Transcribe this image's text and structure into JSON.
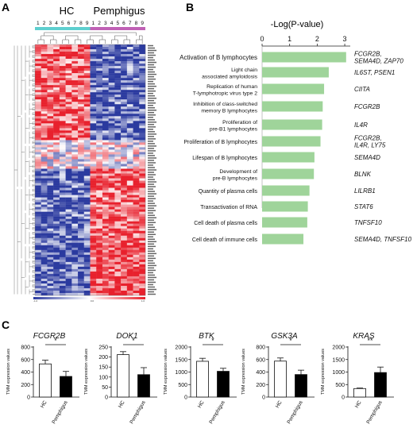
{
  "panels": {
    "A": "A",
    "B": "B",
    "C": "C"
  },
  "chart_data": [
    {
      "type": "heatmap",
      "panel": "A",
      "groups": [
        "HC",
        "Pemphigus"
      ],
      "column_numbers": [
        "1",
        "2",
        "3",
        "4",
        "5",
        "6",
        "7",
        "8",
        "9",
        "1",
        "2",
        "3",
        "4",
        "5",
        "6",
        "7",
        "8",
        "9"
      ],
      "group_colors": {
        "HC": "#5ecfcf",
        "Pemphigus": "#c061b5"
      },
      "color_scale": {
        "low": "#2b3a9f",
        "mid": "#ffffff",
        "high": "#e8212d"
      },
      "scale_labels": [
        "-1.0",
        "0.0",
        "1.0"
      ],
      "n_rows": 105
    },
    {
      "type": "bar",
      "panel": "B",
      "orientation": "horizontal",
      "title": "-Log(P-value)",
      "xlim": [
        0,
        3.2
      ],
      "xticks": [
        "0",
        "1",
        "2",
        "3"
      ],
      "bar_color": "#9fd49a",
      "categories": [
        [
          "Activation of B lymphocytes"
        ],
        [
          "Light chain",
          "associated amyloidosis"
        ],
        [
          "Replication of human",
          "T-lymphotropic virus type 2"
        ],
        [
          "Inhibition of class-switched",
          "memory B lymphocytes"
        ],
        [
          "Proliferation of",
          "pre-B1 lymphocytes"
        ],
        [
          "Proliferation of B lymphocytes"
        ],
        [
          "Lifespan of B lymphocytes"
        ],
        [
          "Development of",
          "pre-B lymphocytes"
        ],
        [
          "Quantity of plasma cells"
        ],
        [
          "Transactivation of RNA"
        ],
        [
          "Cell death of plasma cells"
        ],
        [
          "Cell death of immune cells"
        ]
      ],
      "values": [
        3.05,
        2.42,
        2.25,
        2.2,
        2.18,
        2.12,
        1.9,
        1.88,
        1.72,
        1.66,
        1.64,
        1.5
      ],
      "genes": [
        [
          "FCGR2B,",
          "SEMA4D, ZAP70"
        ],
        [
          "IL6ST, PSEN1"
        ],
        [
          "CIITA"
        ],
        [
          "FCGR2B"
        ],
        [
          "IL4R"
        ],
        [
          "FCGR2B,",
          "IL4R, LY75"
        ],
        [
          "SEMA4D"
        ],
        [
          "BLNK"
        ],
        [
          "LILRB1"
        ],
        [
          "STAT6"
        ],
        [
          "TNFSF10"
        ],
        [
          "SEMA4D, TNFSF10"
        ]
      ]
    },
    {
      "type": "bar",
      "panel": "C",
      "ylabel": "TMM expression values",
      "categories": [
        "HC",
        "Pemphigus"
      ],
      "colors": [
        "#ffffff",
        "#000000"
      ],
      "plots": [
        {
          "title": "FCGR2B",
          "ylim": [
            0,
            800
          ],
          "yticks": [
            "0",
            "200",
            "400",
            "600",
            "800"
          ],
          "values": [
            530,
            330
          ],
          "errors": [
            60,
            80
          ],
          "significance": "*"
        },
        {
          "title": "DOK1",
          "ylim": [
            0,
            250
          ],
          "yticks": [
            "0",
            "50",
            "100",
            "150",
            "200",
            "250"
          ],
          "values": [
            212,
            112
          ],
          "errors": [
            15,
            35
          ],
          "significance": "*"
        },
        {
          "title": "BTK",
          "ylim": [
            0,
            2000
          ],
          "yticks": [
            "0",
            "500",
            "1000",
            "1500",
            "2000"
          ],
          "values": [
            1430,
            1030
          ],
          "errors": [
            120,
            120
          ],
          "significance": "*"
        },
        {
          "title": "GSK3A",
          "ylim": [
            0,
            800
          ],
          "yticks": [
            "0",
            "200",
            "400",
            "600",
            "800"
          ],
          "values": [
            575,
            360
          ],
          "errors": [
            50,
            70
          ],
          "significance": "*"
        },
        {
          "title": "KRAS",
          "ylim": [
            0,
            2000
          ],
          "yticks": [
            "0",
            "500",
            "1000",
            "1500",
            "2000"
          ],
          "values": [
            340,
            980
          ],
          "errors": [
            20,
            220
          ],
          "significance": "**"
        }
      ]
    }
  ]
}
